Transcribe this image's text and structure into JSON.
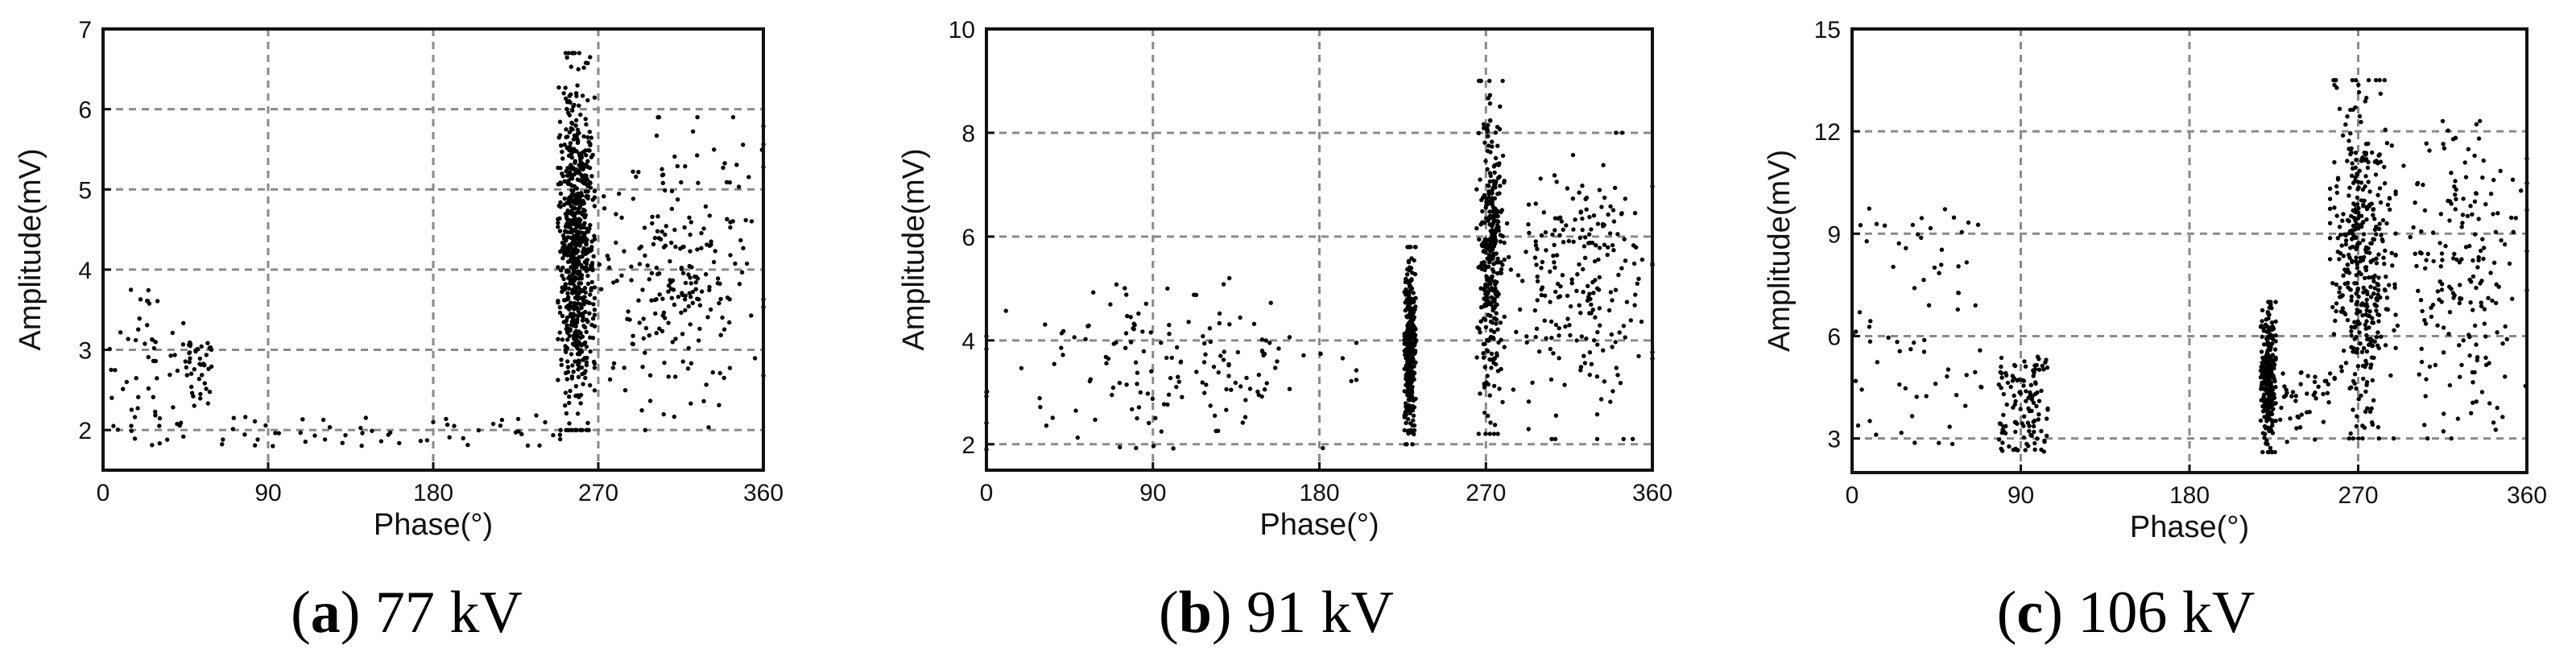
{
  "figure": {
    "background": "#ffffff",
    "point_color": "#000000",
    "grid_color": "#8a8a8a"
  },
  "chart_data": [
    {
      "type": "scatter",
      "panel_label": "a",
      "caption": "77 kV",
      "xlabel": "Phase(°)",
      "ylabel": "Amplitude(mV)",
      "xlim": [
        0,
        360
      ],
      "ylim": [
        1.5,
        7
      ],
      "xticks": [
        0,
        90,
        180,
        270,
        360
      ],
      "yticks": [
        2,
        3,
        4,
        5,
        6,
        7
      ],
      "grid": true,
      "clusters": [
        {
          "name": "low-phase scatter",
          "x_range": [
            0,
            45
          ],
          "y_range": [
            1.8,
            3.8
          ],
          "count": 60
        },
        {
          "name": "cluster near 55°",
          "x_range": [
            45,
            60
          ],
          "y_range": [
            2.3,
            3.1
          ],
          "count": 40
        },
        {
          "name": "baseline 60–250°",
          "x_range": [
            60,
            250
          ],
          "y_range": [
            1.8,
            2.2
          ],
          "count": 55
        },
        {
          "name": "main column",
          "x_range": [
            248,
            268
          ],
          "y_range": [
            2.0,
            6.7
          ],
          "count": 700
        },
        {
          "name": "tail",
          "x_range": [
            268,
            360
          ],
          "y_range": [
            2.0,
            5.9
          ],
          "count": 240
        }
      ]
    },
    {
      "type": "scatter",
      "panel_label": "b",
      "caption": "91 kV",
      "xlabel": "Phase(°)",
      "ylabel": "Amplitude(mV)",
      "xlim": [
        0,
        360
      ],
      "ylim": [
        1.5,
        10
      ],
      "xticks": [
        0,
        90,
        180,
        270,
        360
      ],
      "yticks": [
        2,
        4,
        6,
        8,
        10
      ],
      "grid": true,
      "clusters": [
        {
          "name": "decaying scatter",
          "x_range": [
            0,
            200
          ],
          "y_range": [
            1.9,
            5.2
          ],
          "count": 160
        },
        {
          "name": "narrow column near 230°",
          "x_range": [
            226,
            232
          ],
          "y_range": [
            2.0,
            5.8
          ],
          "count": 360
        },
        {
          "name": "main column",
          "x_range": [
            265,
            280
          ],
          "y_range": [
            2.2,
            9.0
          ],
          "count": 330
        },
        {
          "name": "tail",
          "x_range": [
            280,
            360
          ],
          "y_range": [
            2.1,
            8.0
          ],
          "count": 230
        }
      ]
    },
    {
      "type": "scatter",
      "panel_label": "c",
      "caption": "106 kV",
      "xlabel": "Phase(°)",
      "ylabel": "Amplitude(mV)",
      "xlim": [
        0,
        360
      ],
      "ylim": [
        2,
        15
      ],
      "xticks": [
        0,
        90,
        180,
        270,
        360
      ],
      "yticks": [
        3,
        6,
        9,
        12,
        15
      ],
      "grid": true,
      "clusters": [
        {
          "name": "low-phase scatter",
          "x_range": [
            0,
            70
          ],
          "y_range": [
            2.8,
            9.8
          ],
          "count": 70
        },
        {
          "name": "cluster near 90°",
          "x_range": [
            78,
            105
          ],
          "y_range": [
            2.6,
            5.4
          ],
          "count": 120
        },
        {
          "name": "narrow column near 222°",
          "x_range": [
            218,
            226
          ],
          "y_range": [
            2.6,
            7.0
          ],
          "count": 260
        },
        {
          "name": "sparse points 226–255°",
          "x_range": [
            226,
            255
          ],
          "y_range": [
            2.9,
            5.0
          ],
          "count": 40
        },
        {
          "name": "main cluster",
          "x_range": [
            255,
            290
          ],
          "y_range": [
            3.0,
            13.5
          ],
          "count": 420
        },
        {
          "name": "tail",
          "x_range": [
            290,
            360
          ],
          "y_range": [
            3.0,
            12.3
          ],
          "count": 200
        }
      ]
    }
  ]
}
